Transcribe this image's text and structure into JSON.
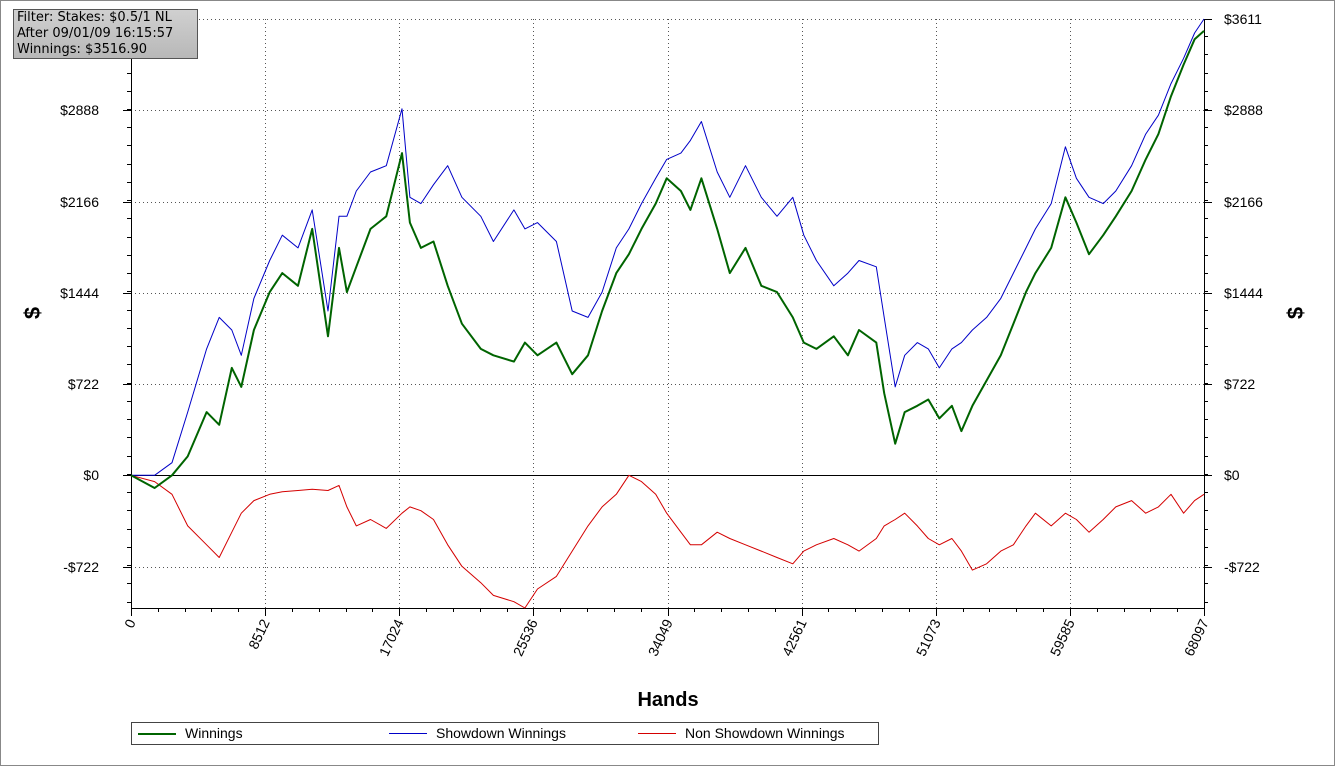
{
  "info_box": {
    "line1": "Filter: Stakes: $0.5/1 NL",
    "line2": "After 09/01/09 16:15:57",
    "line3": "Winnings: $3516.90"
  },
  "chart_data": {
    "type": "line",
    "title": "",
    "xlabel": "Hands",
    "ylabel": "$",
    "xlim": [
      0,
      68097
    ],
    "ylim": [
      -1050,
      3611
    ],
    "x_ticks": [
      0,
      8512,
      17024,
      25536,
      34049,
      42561,
      51073,
      59585,
      68097
    ],
    "x_tick_labels": [
      "0",
      "8512",
      "17024",
      "25536",
      "34049",
      "42561",
      "51073",
      "59585",
      "68097"
    ],
    "y_ticks": [
      -722,
      0,
      722,
      1444,
      2166,
      2888,
      3611
    ],
    "y_tick_labels": [
      "-$722",
      "$0",
      "$722",
      "$1444",
      "$2166",
      "$2888",
      "$3611"
    ],
    "grid": true,
    "legend_position": "bottom",
    "x": [
      0,
      1500,
      2600,
      3600,
      4800,
      5600,
      6400,
      7000,
      7800,
      8800,
      9600,
      10600,
      11500,
      12500,
      13200,
      13700,
      14300,
      15200,
      16200,
      17200,
      17700,
      18400,
      19200,
      20100,
      21000,
      22200,
      23000,
      24300,
      25000,
      25800,
      27000,
      28000,
      29000,
      29900,
      30800,
      31600,
      32400,
      33300,
      34000,
      34900,
      35500,
      36200,
      37200,
      38000,
      39000,
      40000,
      41000,
      42000,
      42700,
      43500,
      44600,
      45500,
      46200,
      47300,
      47800,
      48500,
      49100,
      49900,
      50600,
      51300,
      52100,
      52700,
      53400,
      54300,
      55200,
      56000,
      56800,
      57400,
      58400,
      59300,
      60000,
      60800,
      61700,
      62500,
      63500,
      64400,
      65200,
      66000,
      66800,
      67500,
      68097
    ],
    "series": [
      {
        "name": "Winnings",
        "color": "#006400",
        "values": [
          0,
          -100,
          0,
          150,
          500,
          400,
          850,
          700,
          1150,
          1450,
          1600,
          1500,
          1950,
          1100,
          1800,
          1450,
          1650,
          1950,
          2050,
          2550,
          2000,
          1800,
          1850,
          1500,
          1200,
          1000,
          950,
          900,
          1050,
          950,
          1050,
          800,
          950,
          1300,
          1600,
          1750,
          1950,
          2150,
          2350,
          2250,
          2100,
          2350,
          1950,
          1600,
          1800,
          1500,
          1450,
          1250,
          1050,
          1000,
          1100,
          950,
          1150,
          1050,
          650,
          250,
          500,
          550,
          600,
          450,
          550,
          350,
          550,
          750,
          950,
          1200,
          1450,
          1600,
          1800,
          2200,
          2000,
          1750,
          1900,
          2050,
          2250,
          2500,
          2700,
          3000,
          3250,
          3450,
          3517
        ]
      },
      {
        "name": "Showdown Winnings",
        "color": "#0000c8",
        "values": [
          0,
          0,
          100,
          500,
          1000,
          1250,
          1150,
          950,
          1400,
          1700,
          1900,
          1800,
          2100,
          1300,
          2050,
          2050,
          2250,
          2400,
          2450,
          2900,
          2200,
          2150,
          2300,
          2450,
          2200,
          2050,
          1850,
          2100,
          1950,
          2000,
          1850,
          1300,
          1250,
          1450,
          1800,
          1950,
          2150,
          2350,
          2500,
          2550,
          2650,
          2800,
          2400,
          2200,
          2450,
          2200,
          2050,
          2200,
          1900,
          1700,
          1500,
          1600,
          1700,
          1650,
          1250,
          700,
          950,
          1050,
          1000,
          850,
          1000,
          1050,
          1150,
          1250,
          1400,
          1600,
          1800,
          1950,
          2150,
          2600,
          2350,
          2200,
          2150,
          2250,
          2450,
          2700,
          2850,
          3100,
          3300,
          3500,
          3611
        ]
      },
      {
        "name": "Non Showdown Winnings",
        "color": "#d40000",
        "values": [
          0,
          -50,
          -150,
          -400,
          -550,
          -650,
          -450,
          -300,
          -200,
          -150,
          -130,
          -120,
          -110,
          -120,
          -80,
          -250,
          -400,
          -350,
          -420,
          -300,
          -250,
          -280,
          -350,
          -550,
          -720,
          -850,
          -950,
          -1000,
          -1050,
          -900,
          -800,
          -600,
          -400,
          -250,
          -150,
          0,
          -50,
          -150,
          -300,
          -450,
          -550,
          -550,
          -450,
          -500,
          -550,
          -600,
          -650,
          -700,
          -600,
          -550,
          -500,
          -550,
          -600,
          -500,
          -400,
          -350,
          -300,
          -400,
          -500,
          -550,
          -500,
          -600,
          -750,
          -700,
          -600,
          -550,
          -400,
          -300,
          -400,
          -300,
          -350,
          -450,
          -350,
          -250,
          -200,
          -300,
          -250,
          -150,
          -300,
          -200,
          -150
        ]
      }
    ]
  },
  "legend": {
    "items": [
      {
        "label": "Winnings",
        "color": "#006400"
      },
      {
        "label": "Showdown Winnings",
        "color": "#0000c8"
      },
      {
        "label": "Non Showdown Winnings",
        "color": "#d40000"
      }
    ]
  }
}
